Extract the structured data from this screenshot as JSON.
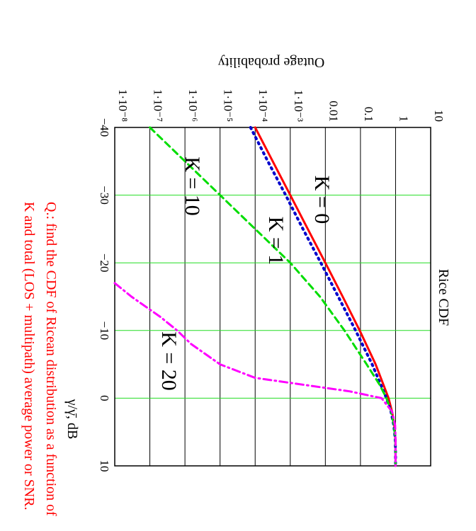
{
  "chart_data": {
    "type": "line",
    "title": "Rice CDF",
    "ylabel": "Outage probability",
    "xlabel": "γ/γ̄, dB",
    "x_ticks": [
      "−40",
      "−30",
      "−20",
      "−10",
      "0",
      "10"
    ],
    "y_ticks": [
      "10",
      "1",
      "0.1",
      "0.01",
      "1·10⁻³",
      "1·10⁻⁴",
      "1·10⁻⁵",
      "1·10⁻⁶",
      "1·10⁻⁷",
      "1·10⁻⁸"
    ],
    "xlim": [
      -40,
      10
    ],
    "ylim": [
      1e-08,
      10
    ],
    "yscale": "log",
    "orientation": "rotated 90° clockwise",
    "series": [
      {
        "label": "K = 0",
        "color": "#ff0000",
        "style": "solid",
        "x": [
          -40,
          -35,
          -30,
          -25,
          -20,
          -15,
          -10,
          -5,
          0,
          2,
          4,
          6,
          8,
          10
        ],
        "y": [
          0.0001,
          0.000316,
          0.001,
          0.00316,
          0.01,
          0.0311,
          0.0952,
          0.271,
          0.632,
          0.796,
          0.92,
          0.982,
          0.998,
          1.0
        ]
      },
      {
        "label": "K = 1",
        "color": "#0000cc",
        "style": "dotted",
        "x": [
          -40,
          -35,
          -30,
          -25,
          -20,
          -15,
          -10,
          -5,
          0,
          2,
          4,
          6,
          8,
          10
        ],
        "y": [
          7.4e-05,
          0.00023,
          0.00074,
          0.0023,
          0.0074,
          0.0233,
          0.0725,
          0.215,
          0.55,
          0.74,
          0.89,
          0.975,
          0.997,
          1.0
        ]
      },
      {
        "label": "K = 10",
        "color": "#00dd00",
        "style": "dashed",
        "x": [
          -40,
          -35,
          -30,
          -25,
          -20,
          -15,
          -10,
          -5,
          -2,
          0,
          2,
          4,
          6,
          8,
          10
        ],
        "y": [
          1e-07,
          1e-06,
          1e-05,
          0.0001,
          0.001,
          0.007,
          0.035,
          0.15,
          0.35,
          0.55,
          0.75,
          0.9,
          0.98,
          0.998,
          1.0
        ]
      },
      {
        "label": "K = 20",
        "color": "#ff00ff",
        "style": "dashdot",
        "x": [
          -17,
          -15,
          -12,
          -10,
          -8,
          -5,
          -3,
          -1,
          0,
          2,
          4,
          6,
          8,
          10
        ],
        "y": [
          1e-08,
          3e-08,
          2e-07,
          6e-07,
          1.5e-06,
          1e-05,
          0.0001,
          0.05,
          0.4,
          0.8,
          0.97,
          0.998,
          1.0,
          1.0
        ]
      }
    ]
  },
  "note": "Q.: find the CDF of Ricean distribution as a function of K and total (LOS + multipath) average power or SNR."
}
